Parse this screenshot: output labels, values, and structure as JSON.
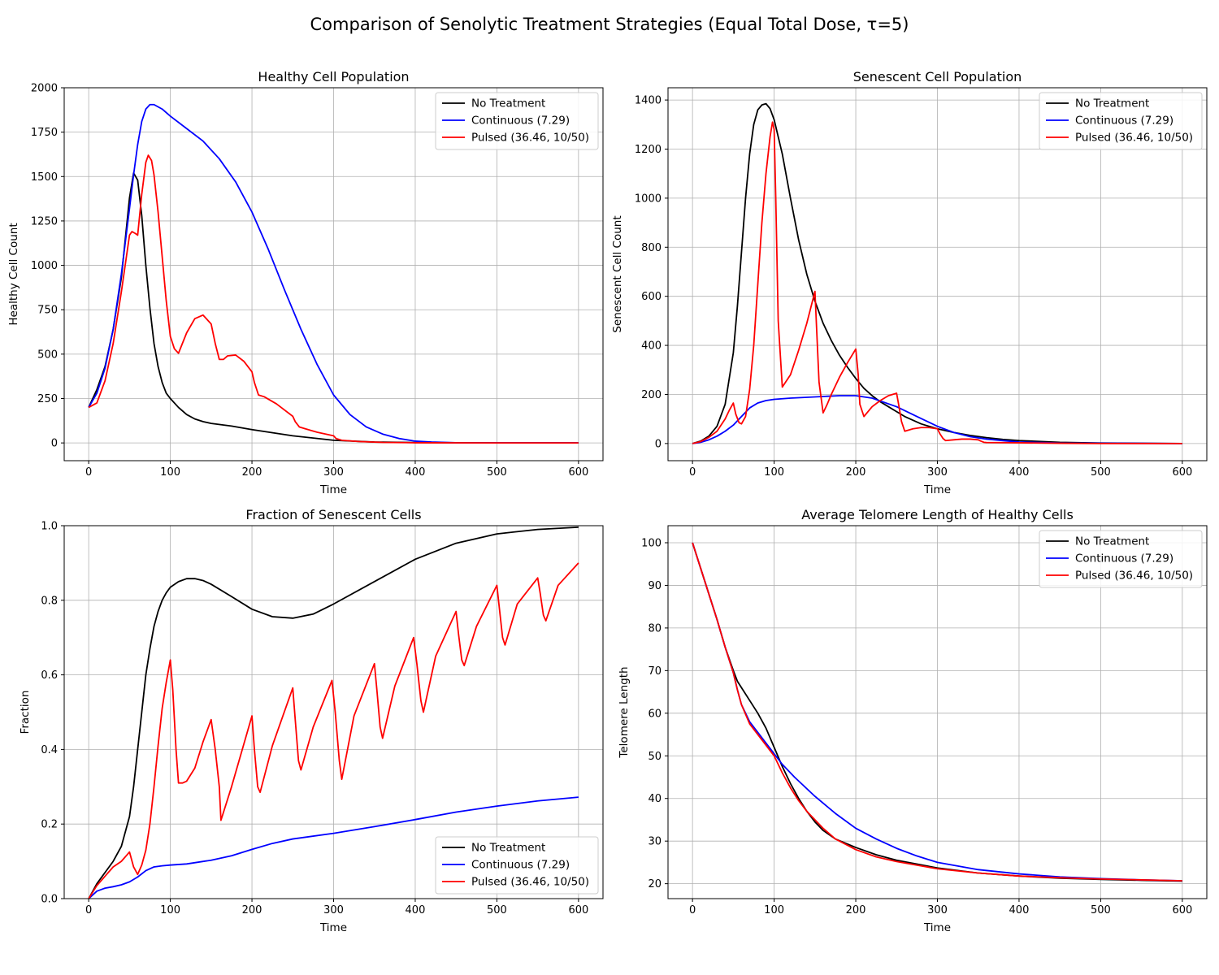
{
  "figure": {
    "title": "Comparison of Senolytic Treatment Strategies (Equal Total Dose, τ=5)"
  },
  "colors": {
    "no_treatment": "#000000",
    "continuous": "#0000ff",
    "pulsed": "#ff0000",
    "grid": "#b0b0b0"
  },
  "chart_data": [
    {
      "type": "line",
      "title": "Healthy Cell Population",
      "xlabel": "Time",
      "ylabel": "Healthy Cell Count",
      "xlim": [
        -30,
        630
      ],
      "ylim": [
        -100,
        2000
      ],
      "xticks": [
        0,
        100,
        200,
        300,
        400,
        500,
        600
      ],
      "yticks": [
        0,
        250,
        500,
        750,
        1000,
        1250,
        1500,
        1750,
        2000
      ],
      "grid": true,
      "legend_position": "upper right",
      "series": [
        {
          "name": "No Treatment",
          "color": "#000000",
          "x": [
            0,
            10,
            20,
            30,
            40,
            50,
            55,
            60,
            65,
            70,
            75,
            80,
            85,
            90,
            95,
            100,
            110,
            120,
            130,
            140,
            150,
            175,
            200,
            250,
            300,
            350,
            400,
            450,
            500,
            600
          ],
          "y": [
            200,
            300,
            430,
            640,
            930,
            1380,
            1520,
            1480,
            1280,
            1000,
            760,
            560,
            430,
            340,
            280,
            250,
            200,
            160,
            135,
            120,
            110,
            95,
            75,
            40,
            15,
            5,
            2,
            1,
            0,
            0
          ]
        },
        {
          "name": "Continuous (7.29)",
          "color": "#0000ff",
          "x": [
            0,
            10,
            20,
            30,
            40,
            50,
            55,
            60,
            65,
            70,
            75,
            80,
            90,
            100,
            120,
            140,
            160,
            180,
            200,
            220,
            240,
            260,
            280,
            300,
            320,
            340,
            360,
            380,
            400,
            420,
            450,
            500,
            600
          ],
          "y": [
            200,
            280,
            420,
            640,
            950,
            1320,
            1510,
            1680,
            1810,
            1880,
            1905,
            1905,
            1880,
            1840,
            1770,
            1700,
            1600,
            1470,
            1300,
            1090,
            860,
            640,
            440,
            270,
            160,
            90,
            50,
            25,
            10,
            5,
            1,
            0,
            0
          ]
        },
        {
          "name": "Pulsed (36.46, 10/50)",
          "color": "#ff0000",
          "x": [
            0,
            10,
            20,
            30,
            40,
            50,
            53,
            57,
            60,
            65,
            70,
            73,
            77,
            80,
            85,
            90,
            95,
            100,
            105,
            110,
            120,
            130,
            140,
            150,
            155,
            160,
            165,
            170,
            180,
            190,
            200,
            203,
            208,
            215,
            230,
            250,
            253,
            258,
            265,
            280,
            300,
            303,
            310,
            330,
            360,
            400,
            500,
            600
          ],
          "y": [
            200,
            225,
            350,
            560,
            850,
            1170,
            1190,
            1180,
            1170,
            1400,
            1580,
            1620,
            1590,
            1510,
            1300,
            1050,
            800,
            600,
            530,
            505,
            620,
            700,
            720,
            670,
            560,
            470,
            470,
            490,
            495,
            460,
            400,
            340,
            270,
            260,
            220,
            150,
            120,
            90,
            80,
            60,
            40,
            25,
            15,
            8,
            3,
            1,
            0,
            0
          ]
        }
      ]
    },
    {
      "type": "line",
      "title": "Senescent Cell Population",
      "xlabel": "Time",
      "ylabel": "Senescent Cell Count",
      "xlim": [
        -30,
        630
      ],
      "ylim": [
        -70,
        1450
      ],
      "xticks": [
        0,
        100,
        200,
        300,
        400,
        500,
        600
      ],
      "yticks": [
        0,
        200,
        400,
        600,
        800,
        1000,
        1200,
        1400
      ],
      "grid": true,
      "legend_position": "upper right",
      "series": [
        {
          "name": "No Treatment",
          "color": "#000000",
          "x": [
            0,
            10,
            20,
            30,
            40,
            50,
            55,
            60,
            65,
            70,
            75,
            80,
            85,
            90,
            95,
            100,
            110,
            120,
            130,
            140,
            150,
            160,
            170,
            180,
            190,
            200,
            210,
            220,
            230,
            240,
            250,
            260,
            280,
            300,
            320,
            340,
            360,
            380,
            400,
            450,
            500,
            600
          ],
          "y": [
            0,
            10,
            30,
            70,
            160,
            370,
            560,
            780,
            1000,
            1180,
            1300,
            1360,
            1380,
            1385,
            1365,
            1320,
            1180,
            1000,
            830,
            690,
            580,
            490,
            420,
            360,
            310,
            265,
            225,
            195,
            170,
            150,
            130,
            110,
            80,
            60,
            45,
            33,
            24,
            17,
            12,
            5,
            2,
            0
          ]
        },
        {
          "name": "Continuous (7.29)",
          "color": "#0000ff",
          "x": [
            0,
            10,
            20,
            30,
            40,
            50,
            60,
            70,
            80,
            90,
            100,
            120,
            150,
            180,
            200,
            220,
            250,
            275,
            300,
            320,
            340,
            360,
            400,
            450,
            500,
            600
          ],
          "y": [
            0,
            5,
            15,
            30,
            50,
            75,
            110,
            145,
            165,
            175,
            180,
            185,
            190,
            195,
            195,
            185,
            150,
            110,
            70,
            45,
            28,
            18,
            6,
            2,
            1,
            0
          ]
        },
        {
          "name": "Pulsed (36.46, 10/50)",
          "color": "#ff0000",
          "x": [
            0,
            10,
            20,
            30,
            40,
            45,
            50,
            53,
            57,
            60,
            65,
            70,
            75,
            80,
            85,
            90,
            95,
            98,
            100,
            102,
            105,
            110,
            120,
            130,
            140,
            150,
            152,
            155,
            160,
            165,
            170,
            180,
            190,
            200,
            203,
            205,
            210,
            220,
            230,
            240,
            250,
            253,
            256,
            260,
            270,
            280,
            290,
            300,
            303,
            307,
            310,
            320,
            330,
            340,
            350,
            353,
            357,
            360,
            400,
            450,
            500,
            600
          ],
          "y": [
            0,
            8,
            25,
            50,
            100,
            135,
            165,
            120,
            85,
            80,
            110,
            220,
            400,
            650,
            900,
            1100,
            1250,
            1310,
            1280,
            1000,
            500,
            230,
            280,
            380,
            490,
            620,
            470,
            250,
            125,
            160,
            200,
            270,
            330,
            385,
            280,
            160,
            110,
            150,
            175,
            195,
            205,
            150,
            90,
            50,
            60,
            65,
            65,
            60,
            40,
            20,
            12,
            15,
            18,
            18,
            15,
            10,
            5,
            4,
            3,
            1,
            0,
            0
          ]
        }
      ]
    },
    {
      "type": "line",
      "title": "Fraction of Senescent Cells",
      "xlabel": "Time",
      "ylabel": "Fraction",
      "xlim": [
        -30,
        630
      ],
      "ylim": [
        0,
        1
      ],
      "xticks": [
        0,
        100,
        200,
        300,
        400,
        500,
        600
      ],
      "yticks": [
        0.0,
        0.2,
        0.4,
        0.6,
        0.8,
        1.0
      ],
      "grid": true,
      "legend_position": "lower right",
      "series": [
        {
          "name": "No Treatment",
          "color": "#000000",
          "x": [
            0,
            10,
            20,
            30,
            40,
            50,
            55,
            60,
            65,
            70,
            75,
            80,
            85,
            90,
            95,
            100,
            110,
            120,
            130,
            140,
            150,
            175,
            200,
            225,
            250,
            275,
            300,
            350,
            400,
            450,
            500,
            550,
            600
          ],
          "y": [
            0,
            0.04,
            0.07,
            0.1,
            0.14,
            0.22,
            0.3,
            0.4,
            0.5,
            0.6,
            0.67,
            0.73,
            0.77,
            0.8,
            0.82,
            0.835,
            0.85,
            0.858,
            0.858,
            0.853,
            0.843,
            0.81,
            0.776,
            0.756,
            0.752,
            0.763,
            0.79,
            0.85,
            0.91,
            0.953,
            0.978,
            0.99,
            0.996
          ]
        },
        {
          "name": "Continuous (7.29)",
          "color": "#0000ff",
          "x": [
            0,
            10,
            20,
            30,
            40,
            50,
            60,
            70,
            80,
            90,
            100,
            120,
            150,
            175,
            200,
            225,
            250,
            300,
            350,
            400,
            450,
            500,
            550,
            600
          ],
          "y": [
            0,
            0.02,
            0.028,
            0.032,
            0.037,
            0.045,
            0.058,
            0.075,
            0.085,
            0.088,
            0.09,
            0.093,
            0.103,
            0.115,
            0.132,
            0.148,
            0.16,
            0.175,
            0.193,
            0.212,
            0.232,
            0.248,
            0.262,
            0.272
          ]
        },
        {
          "name": "Pulsed (36.46, 10/50)",
          "color": "#ff0000",
          "x": [
            0,
            10,
            20,
            30,
            40,
            48,
            50,
            55,
            60,
            65,
            70,
            75,
            80,
            85,
            90,
            95,
            100,
            103,
            107,
            110,
            115,
            120,
            130,
            140,
            150,
            155,
            160,
            162,
            175,
            200,
            203,
            207,
            210,
            225,
            250,
            253,
            257,
            260,
            275,
            298,
            302,
            307,
            310,
            325,
            350,
            353,
            357,
            360,
            375,
            398,
            402,
            407,
            410,
            425,
            450,
            453,
            457,
            460,
            475,
            500,
            503,
            507,
            510,
            525,
            550,
            553,
            557,
            560,
            575,
            600
          ],
          "y": [
            0,
            0.035,
            0.06,
            0.085,
            0.1,
            0.12,
            0.125,
            0.085,
            0.065,
            0.09,
            0.13,
            0.2,
            0.3,
            0.41,
            0.51,
            0.58,
            0.64,
            0.56,
            0.4,
            0.31,
            0.31,
            0.315,
            0.35,
            0.42,
            0.48,
            0.4,
            0.3,
            0.21,
            0.3,
            0.49,
            0.4,
            0.3,
            0.285,
            0.41,
            0.565,
            0.48,
            0.37,
            0.345,
            0.46,
            0.585,
            0.5,
            0.37,
            0.32,
            0.49,
            0.63,
            0.56,
            0.46,
            0.43,
            0.57,
            0.7,
            0.63,
            0.53,
            0.5,
            0.65,
            0.77,
            0.71,
            0.64,
            0.625,
            0.73,
            0.84,
            0.78,
            0.7,
            0.68,
            0.79,
            0.86,
            0.82,
            0.76,
            0.745,
            0.84,
            0.9
          ]
        }
      ]
    },
    {
      "type": "line",
      "title": "Average Telomere Length of Healthy Cells",
      "xlabel": "Time",
      "ylabel": "Telomere Length",
      "xlim": [
        -30,
        630
      ],
      "ylim": [
        16.5,
        104
      ],
      "xticks": [
        0,
        100,
        200,
        300,
        400,
        500,
        600
      ],
      "yticks": [
        20,
        30,
        40,
        50,
        60,
        70,
        80,
        90,
        100
      ],
      "grid": true,
      "legend_position": "upper right",
      "series": [
        {
          "name": "No Treatment",
          "color": "#000000",
          "x": [
            0,
            10,
            20,
            30,
            40,
            50,
            55,
            60,
            70,
            80,
            90,
            100,
            110,
            120,
            130,
            140,
            150,
            160,
            175,
            200,
            225,
            250,
            300,
            350,
            400,
            450,
            500,
            550,
            600
          ],
          "y": [
            100,
            94,
            88,
            82,
            75.5,
            70,
            67.5,
            66,
            63,
            60,
            56.5,
            52,
            47.5,
            43.5,
            40,
            37,
            34.5,
            32.5,
            30.5,
            28.5,
            26.8,
            25.5,
            23.7,
            22.5,
            21.8,
            21.3,
            21.0,
            20.8,
            20.6
          ]
        },
        {
          "name": "Continuous (7.29)",
          "color": "#0000ff",
          "x": [
            0,
            10,
            20,
            30,
            40,
            50,
            55,
            60,
            70,
            80,
            90,
            100,
            110,
            125,
            150,
            175,
            200,
            225,
            250,
            275,
            300,
            350,
            400,
            450,
            500,
            550,
            600
          ],
          "y": [
            100,
            94,
            88,
            82,
            75.5,
            69.5,
            65.5,
            62,
            58,
            55.5,
            53,
            50.5,
            48,
            45,
            40.5,
            36.5,
            33,
            30.5,
            28.3,
            26.5,
            25,
            23.3,
            22.3,
            21.6,
            21.2,
            20.9,
            20.7
          ]
        },
        {
          "name": "Pulsed (36.46, 10/50)",
          "color": "#ff0000",
          "x": [
            0,
            10,
            20,
            30,
            40,
            50,
            55,
            60,
            70,
            80,
            90,
            100,
            110,
            120,
            130,
            140,
            150,
            160,
            175,
            200,
            225,
            250,
            300,
            350,
            400,
            450,
            500,
            550,
            600
          ],
          "y": [
            100,
            94,
            88,
            82,
            75.5,
            69.5,
            65.5,
            62,
            57.5,
            55,
            52.5,
            50,
            46,
            42.5,
            39.5,
            37,
            35,
            33,
            30.5,
            28,
            26.3,
            25.2,
            23.5,
            22.5,
            21.8,
            21.4,
            21.1,
            20.9,
            20.7
          ]
        }
      ]
    }
  ]
}
